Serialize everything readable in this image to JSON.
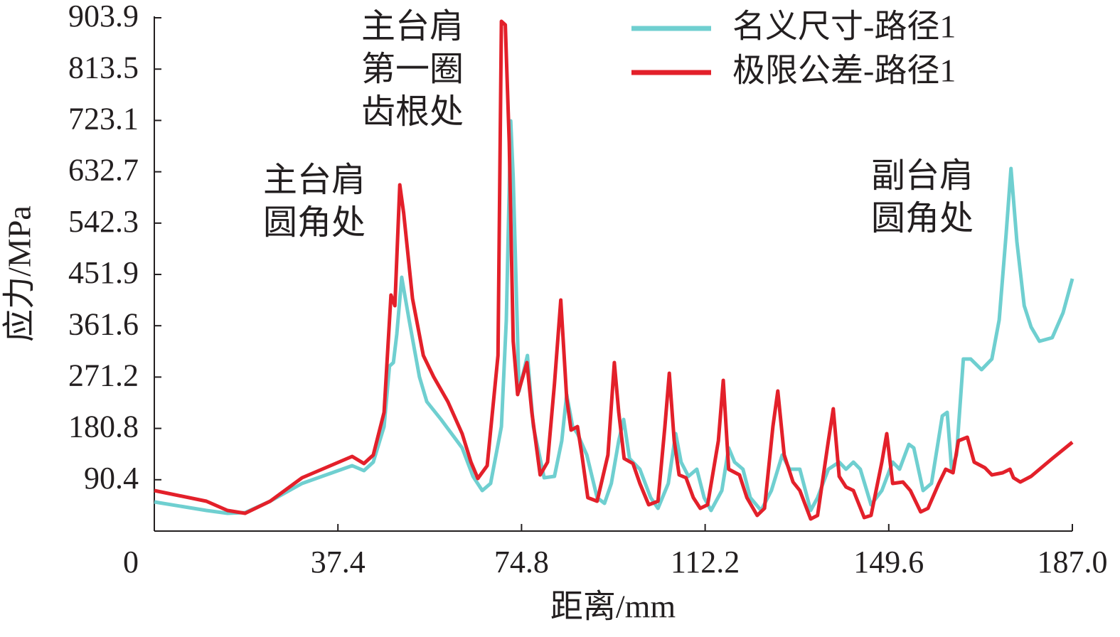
{
  "chart_data": {
    "type": "line",
    "xlabel": "距离/mm",
    "ylabel": "应力/MPa",
    "xlim": [
      0,
      187
    ],
    "ylim": [
      0,
      903.9
    ],
    "xticks": [
      0,
      37.4,
      74.8,
      112.2,
      149.6,
      {
        "value": 187,
        "label": "187.0"
      }
    ],
    "yticks": [
      90.4,
      180.8,
      271.2,
      361.6,
      451.9,
      542.3,
      632.7,
      723.1,
      813.5,
      903.9
    ],
    "legend": "upper right",
    "annotations": [
      {
        "lines": [
          "主台肩",
          "圆角处"
        ]
      },
      {
        "lines": [
          "主台肩",
          "第一圈",
          "齿根处"
        ]
      },
      {
        "lines": [
          "副台肩",
          "圆角处"
        ]
      }
    ],
    "series": [
      {
        "name": "名义尺寸-路径1",
        "color": "#6fcfd0",
        "x": [
          0,
          10.6,
          14.9,
          18.5,
          23.6,
          30.1,
          40.3,
          42.7,
          44.6,
          46.8,
          47.9,
          48.7,
          49.4,
          50.4,
          51.9,
          54.0,
          55.5,
          58.4,
          62.7,
          64.9,
          66.8,
          68.5,
          70.7,
          71.7,
          72.6,
          73.1,
          74.3,
          76.0,
          77.2,
          79.4,
          81.5,
          83.0,
          84.0,
          85.2,
          86.2,
          88.1,
          90.2,
          91.7,
          93.1,
          94.6,
          95.6,
          96.8,
          98.9,
          101.1,
          102.6,
          104.7,
          106.2,
          107.3,
          108.8,
          110.5,
          112.0,
          113.4,
          115.6,
          117.0,
          118.2,
          119.9,
          121.4,
          123.6,
          125.7,
          127.9,
          129.4,
          131.5,
          133.7,
          135.1,
          137.3,
          139.5,
          140.9,
          142.4,
          143.8,
          146.0,
          148.2,
          150.4,
          151.8,
          153.7,
          154.7,
          156.6,
          158.3,
          160.5,
          161.5,
          162.4,
          163.4,
          164.8,
          166.3,
          168.5,
          170.6,
          172.1,
          173.5,
          174.5,
          175.7,
          177.2,
          178.6,
          180.3,
          182.9,
          185.1,
          187.0
        ],
        "values": [
          51.3,
          36.3,
          31.3,
          32.5,
          52.6,
          83.9,
          115.2,
          106.4,
          121.4,
          184.0,
          290.4,
          296.7,
          346.8,
          446.9,
          371.8,
          271.7,
          227.8,
          196.5,
          146.5,
          96.4,
          71.3,
          83.9,
          184.0,
          371.8,
          722.3,
          622.2,
          246.6,
          309.2,
          184.0,
          93.9,
          96.4,
          159.0,
          240.4,
          184.0,
          171.5,
          134.0,
          58.8,
          48.8,
          83.9,
          159.0,
          196.5,
          127.7,
          108.9,
          58.8,
          40.1,
          83.9,
          171.5,
          121.4,
          96.4,
          108.9,
          58.8,
          36.3,
          71.3,
          146.5,
          121.4,
          108.9,
          58.8,
          36.3,
          71.3,
          134.0,
          108.9,
          108.9,
          36.3,
          58.8,
          108.9,
          121.4,
          108.9,
          121.4,
          108.9,
          46.3,
          71.3,
          121.4,
          108.9,
          152.7,
          146.5,
          71.3,
          83.9,
          202.8,
          209.1,
          108.9,
          134.0,
          303.0,
          303.0,
          284.2,
          303.0,
          371.8,
          522.0,
          638.5,
          509.5,
          396.9,
          359.3,
          334.3,
          340.5,
          384.3,
          444.4
        ]
      },
      {
        "name": "极限公差-路径1",
        "color": "#e3202a",
        "x": [
          0,
          10.6,
          14.9,
          18.5,
          23.6,
          30.1,
          40.3,
          42.7,
          44.6,
          46.8,
          48.2,
          49.0,
          50.0,
          50.8,
          52.6,
          54.8,
          56.9,
          59.8,
          62.7,
          64.5,
          65.9,
          67.8,
          70.0,
          70.7,
          71.5,
          72.3,
          73.1,
          74.0,
          75.9,
          76.9,
          78.6,
          80.1,
          81.5,
          82.8,
          84.0,
          84.9,
          86.2,
          87.1,
          88.3,
          90.2,
          92.4,
          93.7,
          94.6,
          95.7,
          97.5,
          98.9,
          100.7,
          102.6,
          104.0,
          104.9,
          105.9,
          106.9,
          108.3,
          109.8,
          111.2,
          112.7,
          114.9,
          115.9,
          117.0,
          119.2,
          120.7,
          122.8,
          124.3,
          126.0,
          127.0,
          128.3,
          130.1,
          131.5,
          133.7,
          135.1,
          137.3,
          138.3,
          139.5,
          140.9,
          142.4,
          144.6,
          146.0,
          148.2,
          149.2,
          150.4,
          152.5,
          154.0,
          156.1,
          157.6,
          159.8,
          161.2,
          162.7,
          163.8,
          165.6,
          167.0,
          169.2,
          170.6,
          172.8,
          174.3,
          175.0,
          176.4,
          178.6,
          182.9,
          187.0
        ],
        "values": [
          71.3,
          52.6,
          36.3,
          31.3,
          52.6,
          93.9,
          131.4,
          118.9,
          134.0,
          209.1,
          415.6,
          396.9,
          609.7,
          559.6,
          409.4,
          309.2,
          271.7,
          227.8,
          171.5,
          121.4,
          92.6,
          115.2,
          309.2,
          897.6,
          891.4,
          684.8,
          334.3,
          240.4,
          296.7,
          209.1,
          98.9,
          121.4,
          259.1,
          406.9,
          234.1,
          177.8,
          184.0,
          134.0,
          58.8,
          52.6,
          134.0,
          296.7,
          209.1,
          127.7,
          118.9,
          83.9,
          46.3,
          52.6,
          184.0,
          277.9,
          159.0,
          98.9,
          93.9,
          58.8,
          40.1,
          46.3,
          159.0,
          265.4,
          108.9,
          98.9,
          58.8,
          27.5,
          40.1,
          184.0,
          246.6,
          134.0,
          86.4,
          71.3,
          21.3,
          27.5,
          159.0,
          215.3,
          96.4,
          77.6,
          71.3,
          23.8,
          27.5,
          121.4,
          171.5,
          83.9,
          86.4,
          71.3,
          33.8,
          40.1,
          83.9,
          108.9,
          102.7,
          159.0,
          165.3,
          121.4,
          111.4,
          98.9,
          102.7,
          108.9,
          93.9,
          86.4,
          96.4,
          127.7,
          156.5
        ]
      }
    ]
  }
}
